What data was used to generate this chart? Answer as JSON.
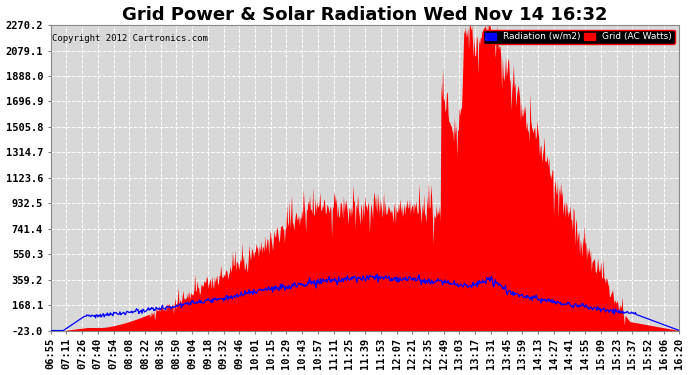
{
  "title": "Grid Power & Solar Radiation Wed Nov 14 16:32",
  "copyright": "Copyright 2012 Cartronics.com",
  "legend_labels": [
    "Radiation (w/m2)",
    "Grid (AC Watts)"
  ],
  "legend_colors": [
    "#0000ff",
    "#ff0000"
  ],
  "yticks": [
    -23.0,
    168.1,
    359.2,
    550.3,
    741.4,
    932.5,
    1123.6,
    1314.7,
    1505.8,
    1696.9,
    1888.0,
    2079.1,
    2270.2
  ],
  "ylim": [
    -23.0,
    2270.2
  ],
  "bg_color": "#ffffff",
  "plot_bg_color": "#d8d8d8",
  "fill_color": "#ff0000",
  "line_color": "#0000ff",
  "title_fontsize": 13,
  "tick_fontsize": 7.5,
  "xtick_labels": [
    "06:55",
    "07:11",
    "07:26",
    "07:40",
    "07:54",
    "08:08",
    "08:22",
    "08:36",
    "08:50",
    "09:04",
    "09:18",
    "09:32",
    "09:46",
    "10:01",
    "10:15",
    "10:29",
    "10:43",
    "10:57",
    "11:11",
    "11:25",
    "11:39",
    "11:53",
    "12:07",
    "12:21",
    "12:35",
    "12:49",
    "13:03",
    "13:17",
    "13:31",
    "13:45",
    "13:59",
    "14:13",
    "14:27",
    "14:41",
    "14:55",
    "15:09",
    "15:23",
    "15:37",
    "15:52",
    "16:06",
    "16:20"
  ]
}
